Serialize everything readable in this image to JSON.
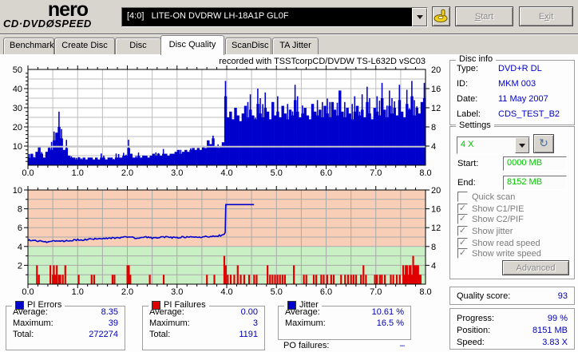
{
  "logo": {
    "line1": "nero",
    "line2_pre": "CD·DVD",
    "line2_disc": "Ø",
    "line2_post": "SPEED"
  },
  "toolbar": {
    "drive": "[4:0]   LITE-ON DVDRW LH-18A1P GL0F",
    "start": "Start",
    "exit": "Exit",
    "eject_icon": "yellow-hand-disc"
  },
  "tabs": [
    {
      "label": "Benchmark"
    },
    {
      "label": "Create Disc"
    },
    {
      "label": "Disc Info"
    },
    {
      "label": "Disc Quality"
    },
    {
      "label": "ScanDisc"
    },
    {
      "label": "TA Jitter"
    }
  ],
  "active_tab": "Disc Quality",
  "disc_info": {
    "title": "Disc info",
    "rows": [
      {
        "label": "Type:",
        "value": "DVD+R DL"
      },
      {
        "label": "ID:",
        "value": "MKM 003"
      },
      {
        "label": "Date:",
        "value": "11 May 2007"
      },
      {
        "label": "Label:",
        "value": "CDS_TEST_B2"
      }
    ]
  },
  "settings": {
    "title": "Settings",
    "speed_value": "4 X",
    "start_label": "Start:",
    "start_value": "0000 MB",
    "end_label": "End:",
    "end_value": "8152 MB",
    "checkboxes": [
      {
        "label": "Quick scan",
        "checked": false
      },
      {
        "label": "Show C1/PIE",
        "checked": true
      },
      {
        "label": "Show C2/PIF",
        "checked": true
      },
      {
        "label": "Show jitter",
        "checked": true
      },
      {
        "label": "Show read speed",
        "checked": true
      },
      {
        "label": "Show write speed",
        "checked": true
      }
    ],
    "advanced": "Advanced"
  },
  "quality": {
    "label": "Quality score:",
    "value": "93"
  },
  "progress": {
    "rows": [
      {
        "label": "Progress:",
        "value": "99 %"
      },
      {
        "label": "Position:",
        "value": "8151 MB"
      },
      {
        "label": "Speed:",
        "value": "3.83 X"
      }
    ]
  },
  "stats": {
    "pi_errors": {
      "title": "PI Errors",
      "color": "#0000cd",
      "rows": [
        [
          "Average:",
          "8.35"
        ],
        [
          "Maximum:",
          "39"
        ],
        [
          "Total:",
          "272274"
        ]
      ]
    },
    "pi_failures": {
      "title": "PI Failures",
      "color": "#e00000",
      "rows": [
        [
          "Average:",
          "0.00"
        ],
        [
          "Maximum:",
          "3"
        ],
        [
          "Total:",
          "1191"
        ]
      ]
    },
    "jitter": {
      "title": "Jitter",
      "color": "#0000cd",
      "rows": [
        [
          "Average:",
          "10.61 %"
        ],
        [
          "Maximum:",
          "16.5 %"
        ]
      ]
    },
    "po": {
      "label": "PO failures:",
      "value": "–"
    }
  },
  "chart_data": [
    {
      "type": "area",
      "series_name": "PI Errors",
      "title": "recorded with TSSTcorpCD/DVDW TS-L632D vSC03",
      "x_min": 0,
      "x_max": 8,
      "x_step": 0.05,
      "y_left_range": [
        0,
        50
      ],
      "y_right_range": [
        0,
        20
      ],
      "x_ticks": [
        "0.0",
        "1.0",
        "2.0",
        "3.0",
        "4.0",
        "5.0",
        "6.0",
        "7.0",
        "8.0"
      ],
      "y_left_ticks": [
        10,
        20,
        30,
        40,
        50
      ],
      "y_right_ticks": [
        4,
        8,
        12,
        16,
        20
      ],
      "bar_color": "#0000cd",
      "speed_line_left_value": 9.7,
      "speed_line_color": "#c9c9c9",
      "grid": true,
      "values": [
        4,
        6,
        4,
        7,
        10,
        6,
        4,
        7,
        9,
        8,
        13,
        17,
        20,
        14,
        8,
        9,
        5,
        4,
        4,
        3,
        4,
        3,
        4,
        3,
        4,
        4,
        3,
        4,
        3,
        4,
        4,
        3,
        4,
        4,
        3,
        4,
        4,
        4,
        5,
        5,
        9,
        6,
        4,
        4,
        5,
        4,
        5,
        5,
        4,
        5,
        6,
        5,
        6,
        5,
        6,
        6,
        5,
        6,
        6,
        7,
        8,
        6,
        7,
        8,
        7,
        8,
        9,
        8,
        9,
        8,
        10,
        9,
        13,
        11,
        14,
        10,
        9,
        10,
        12,
        36,
        25,
        28,
        24,
        30,
        26,
        23,
        27,
        31,
        25,
        29,
        26,
        24,
        32,
        27,
        25,
        30,
        28,
        24,
        33,
        26,
        28,
        25,
        31,
        27,
        24,
        29,
        26,
        34,
        28,
        25,
        27,
        30,
        26,
        24,
        32,
        28,
        26,
        29,
        25,
        31,
        27,
        25,
        33,
        29,
        26,
        39,
        28,
        25,
        30,
        27,
        24,
        28,
        31,
        26,
        29,
        25,
        33,
        27,
        24,
        30,
        28,
        26,
        35,
        29,
        25,
        31,
        27,
        30,
        26,
        34,
        28,
        25,
        32,
        29,
        36,
        26,
        30,
        27,
        33,
        35,
        30
      ]
    },
    {
      "type": "bars+line",
      "series_name": "PI Failures (bars), Jitter (line)",
      "x_min": 0,
      "x_max": 8,
      "y_left_range": [
        0,
        10
      ],
      "y_right_range": [
        0,
        20
      ],
      "x_ticks": [
        "0.0",
        "1.0",
        "2.0",
        "3.0",
        "4.0",
        "5.0",
        "6.0",
        "7.0",
        "8.0"
      ],
      "y_left_ticks": [
        2,
        4,
        6,
        8,
        10
      ],
      "y_right_ticks": [
        4,
        8,
        12,
        16,
        20
      ],
      "zones": [
        {
          "from": 0,
          "to": 4,
          "color": "#c9f0c4"
        },
        {
          "from": 4,
          "to": 10,
          "color": "#f8cfb6"
        }
      ],
      "bar_color": "#e00000",
      "line_color": "#0000cd",
      "grid": true,
      "pi_failures": [
        [
          0.18,
          2
        ],
        [
          0.22,
          1
        ],
        [
          0.45,
          2
        ],
        [
          0.5,
          1
        ],
        [
          0.52,
          2
        ],
        [
          0.55,
          1
        ],
        [
          0.58,
          2
        ],
        [
          0.62,
          1
        ],
        [
          0.65,
          1
        ],
        [
          0.7,
          1
        ],
        [
          0.75,
          2
        ],
        [
          1.02,
          1
        ],
        [
          1.28,
          1
        ],
        [
          1.33,
          1
        ],
        [
          1.7,
          1
        ],
        [
          1.74,
          1
        ],
        [
          2.0,
          2
        ],
        [
          2.03,
          2
        ],
        [
          2.06,
          1
        ],
        [
          2.45,
          1
        ],
        [
          2.73,
          1
        ],
        [
          3.6,
          1
        ],
        [
          3.75,
          1
        ],
        [
          3.95,
          3
        ],
        [
          3.98,
          2
        ],
        [
          4.02,
          1
        ],
        [
          4.08,
          1
        ],
        [
          4.15,
          1
        ],
        [
          4.22,
          2
        ],
        [
          4.28,
          1
        ],
        [
          4.35,
          1
        ],
        [
          4.45,
          1
        ],
        [
          4.55,
          1
        ],
        [
          4.6,
          1
        ],
        [
          4.82,
          2
        ],
        [
          4.87,
          1
        ],
        [
          4.92,
          1
        ],
        [
          4.97,
          1
        ],
        [
          5.02,
          1
        ],
        [
          5.07,
          1
        ],
        [
          5.12,
          1
        ],
        [
          5.17,
          1
        ],
        [
          5.35,
          2
        ],
        [
          5.55,
          1
        ],
        [
          5.6,
          1
        ],
        [
          5.75,
          1
        ],
        [
          5.8,
          1
        ],
        [
          5.9,
          1
        ],
        [
          5.95,
          1
        ],
        [
          6.02,
          1
        ],
        [
          6.1,
          1
        ],
        [
          6.15,
          1
        ],
        [
          6.3,
          1
        ],
        [
          6.38,
          1
        ],
        [
          6.44,
          1
        ],
        [
          6.5,
          1
        ],
        [
          6.55,
          1
        ],
        [
          6.6,
          1
        ],
        [
          6.7,
          1
        ],
        [
          6.75,
          2
        ],
        [
          6.8,
          1
        ],
        [
          6.98,
          1
        ],
        [
          7.02,
          1
        ],
        [
          7.08,
          1
        ],
        [
          7.12,
          1
        ],
        [
          7.18,
          1
        ],
        [
          7.3,
          1
        ],
        [
          7.35,
          1
        ],
        [
          7.42,
          1
        ],
        [
          7.48,
          1
        ],
        [
          7.55,
          2
        ],
        [
          7.58,
          1
        ],
        [
          7.6,
          2
        ],
        [
          7.63,
          2
        ],
        [
          7.66,
          1
        ],
        [
          7.68,
          2
        ],
        [
          7.7,
          2
        ],
        [
          7.72,
          1
        ],
        [
          7.75,
          3
        ],
        [
          7.78,
          2
        ],
        [
          7.8,
          2
        ],
        [
          7.83,
          2
        ],
        [
          7.85,
          2
        ],
        [
          7.88,
          1
        ],
        [
          7.9,
          1
        ]
      ],
      "jitter": [
        [
          0,
          4.7
        ],
        [
          0.1,
          4.65
        ],
        [
          0.2,
          4.6
        ],
        [
          0.3,
          4.55
        ],
        [
          0.4,
          4.5
        ],
        [
          0.5,
          4.55
        ],
        [
          0.6,
          4.6
        ],
        [
          0.7,
          4.55
        ],
        [
          0.8,
          4.6
        ],
        [
          0.9,
          4.65
        ],
        [
          1,
          4.7
        ],
        [
          1.1,
          4.7
        ],
        [
          1.2,
          4.75
        ],
        [
          1.3,
          4.8
        ],
        [
          1.4,
          4.8
        ],
        [
          1.5,
          4.85
        ],
        [
          1.6,
          4.85
        ],
        [
          1.7,
          4.9
        ],
        [
          1.8,
          4.95
        ],
        [
          1.9,
          4.95
        ],
        [
          2,
          5
        ],
        [
          2.1,
          4.95
        ],
        [
          2.2,
          4.9
        ],
        [
          2.3,
          4.95
        ],
        [
          2.4,
          5
        ],
        [
          2.5,
          4.9
        ],
        [
          2.6,
          4.95
        ],
        [
          2.7,
          5
        ],
        [
          2.8,
          5
        ],
        [
          2.9,
          4.95
        ],
        [
          3,
          4.95
        ],
        [
          3.1,
          5
        ],
        [
          3.2,
          5
        ],
        [
          3.3,
          5
        ],
        [
          3.4,
          5.05
        ],
        [
          3.5,
          5
        ],
        [
          3.6,
          5.05
        ],
        [
          3.7,
          5.1
        ],
        [
          3.8,
          5.1
        ],
        [
          3.9,
          5.2
        ],
        [
          3.95,
          5.3
        ],
        [
          3.97,
          5.5
        ],
        [
          3.98,
          8.45
        ],
        [
          4.2,
          8.45
        ],
        [
          4.55,
          8.45
        ]
      ]
    }
  ]
}
